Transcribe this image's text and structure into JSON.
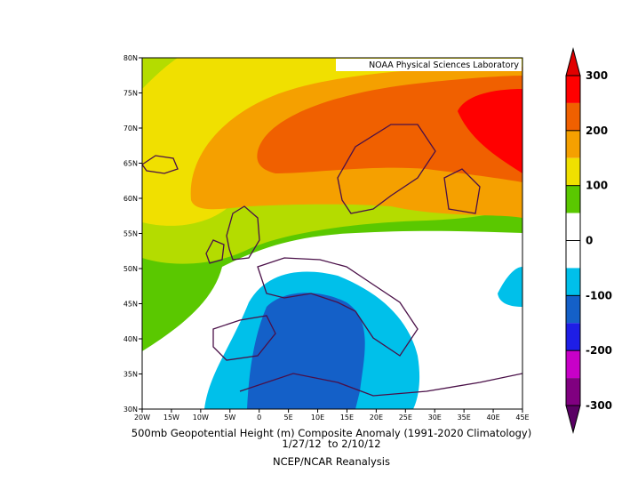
{
  "map": {
    "credit": "NOAA Physical Sciences Laboratory",
    "lat_ticks": [
      "80N",
      "75N",
      "70N",
      "65N",
      "60N",
      "55N",
      "50N",
      "45N",
      "40N",
      "35N",
      "30N"
    ],
    "lon_ticks": [
      "20W",
      "15W",
      "10W",
      "5W",
      "0",
      "5E",
      "10E",
      "15E",
      "20E",
      "25E",
      "30E",
      "35E",
      "40E",
      "45E"
    ],
    "title": "500mb Geopotential Height (m) Composite Anomaly (1991-2020 Climatology)",
    "dates": "1/27/12  to 2/10/12",
    "source": "NCEP/NCAR Reanalysis"
  },
  "colorbar": {
    "ticks": [
      300,
      200,
      100,
      0,
      -100,
      -200,
      -300
    ],
    "colors": [
      "#e10000",
      "#ff0000",
      "#f06000",
      "#f5a000",
      "#f0e000",
      "#5ac800",
      "#ffffff",
      "#ffffff",
      "#00c0ea",
      "#1460c8",
      "#1e1ee6",
      "#c800c8",
      "#800080",
      "#5a0064"
    ]
  }
}
